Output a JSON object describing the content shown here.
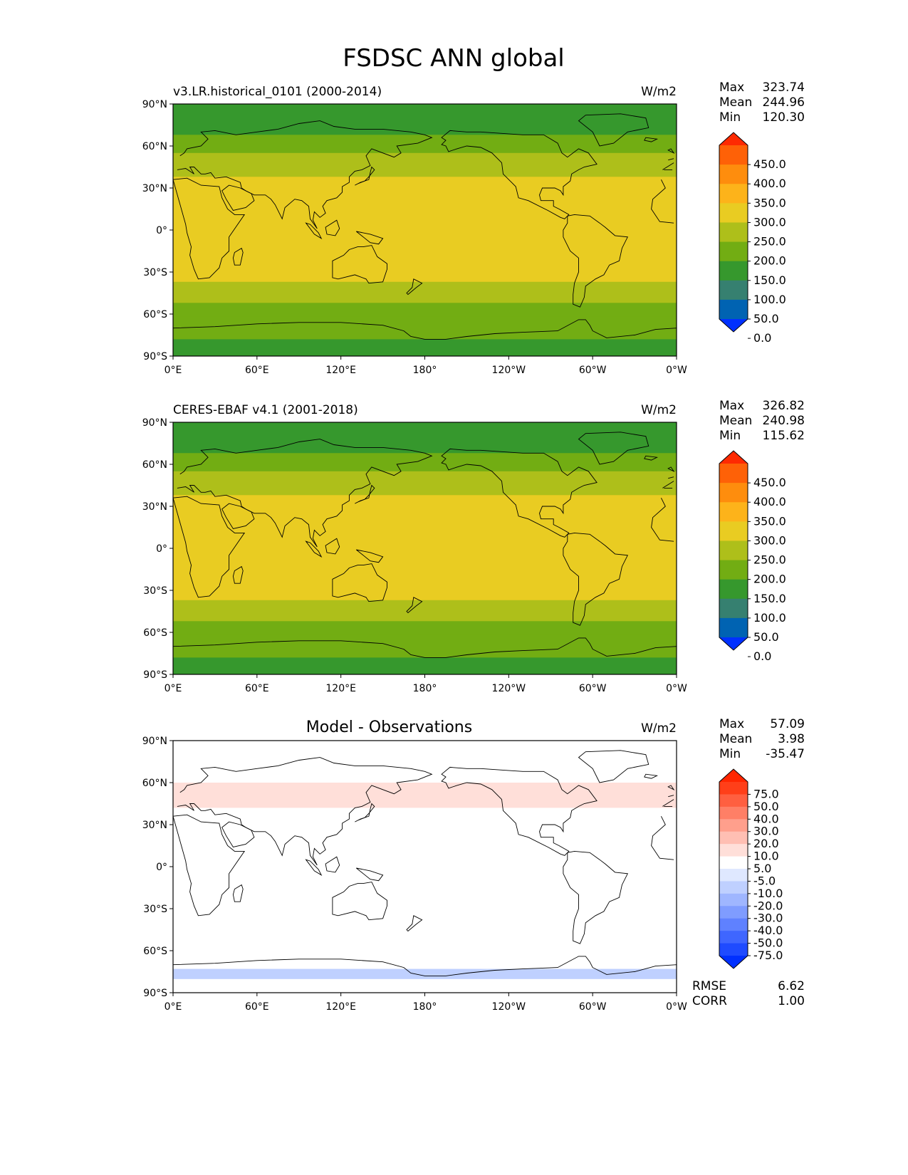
{
  "figure": {
    "title": "FSDSC ANN global"
  },
  "chart_data": [
    {
      "type": "heatmap",
      "title": "v3.LR.historical_0101 (2000-2014)",
      "units": "W/m2",
      "stats": {
        "Max": "323.74",
        "Mean": "244.96",
        "Min": "120.30"
      },
      "xticks": [
        "0°E",
        "60°E",
        "120°E",
        "180°",
        "120°W",
        "60°W",
        "0°W"
      ],
      "yticks": [
        "90°N",
        "60°N",
        "30°N",
        "0°",
        "30°S",
        "60°S",
        "90°S"
      ],
      "colorbar": {
        "levels": [
          "450.0",
          "400.0",
          "350.0",
          "300.0",
          "250.0",
          "200.0",
          "150.0",
          "100.0",
          "50.0",
          "0.0"
        ],
        "colors": [
          "#0030ff",
          "#0063b2",
          "#368070",
          "#36982d",
          "#72ad13",
          "#aebf1a",
          "#e9cc22",
          "#fdb31a",
          "#fe8d0d",
          "#fe6107",
          "#fe2a02"
        ]
      },
      "zonal_bands": [
        {
          "lat_from": 90,
          "lat_to": 68,
          "value": 125
        },
        {
          "lat_from": 68,
          "lat_to": 55,
          "value": 175
        },
        {
          "lat_from": 55,
          "lat_to": 44,
          "value": 215
        },
        {
          "lat_from": 44,
          "lat_to": 38,
          "value": 240
        },
        {
          "lat_from": 38,
          "lat_to": -33,
          "value": 280
        },
        {
          "lat_from": -33,
          "lat_to": -37,
          "value": 255
        },
        {
          "lat_from": -37,
          "lat_to": -52,
          "value": 230
        },
        {
          "lat_from": -52,
          "lat_to": -62,
          "value": 175
        },
        {
          "lat_from": -62,
          "lat_to": -78,
          "value": 150
        },
        {
          "lat_from": -78,
          "lat_to": -90,
          "value": 120
        }
      ]
    },
    {
      "type": "heatmap",
      "title": "CERES-EBAF v4.1 (2001-2018)",
      "units": "W/m2",
      "stats": {
        "Max": "326.82",
        "Mean": "240.98",
        "Min": "115.62"
      },
      "xticks": [
        "0°E",
        "60°E",
        "120°E",
        "180°",
        "120°W",
        "60°W",
        "0°W"
      ],
      "yticks": [
        "90°N",
        "60°N",
        "30°N",
        "0°",
        "30°S",
        "60°S",
        "90°S"
      ],
      "colorbar": {
        "levels": [
          "450.0",
          "400.0",
          "350.0",
          "300.0",
          "250.0",
          "200.0",
          "150.0",
          "100.0",
          "50.0",
          "0.0"
        ],
        "colors": [
          "#0030ff",
          "#0063b2",
          "#368070",
          "#36982d",
          "#72ad13",
          "#aebf1a",
          "#e9cc22",
          "#fdb31a",
          "#fe8d0d",
          "#fe6107",
          "#fe2a02"
        ]
      },
      "zonal_bands": [
        {
          "lat_from": 90,
          "lat_to": 68,
          "value": 125
        },
        {
          "lat_from": 68,
          "lat_to": 55,
          "value": 175
        },
        {
          "lat_from": 55,
          "lat_to": 44,
          "value": 215
        },
        {
          "lat_from": 44,
          "lat_to": 38,
          "value": 240
        },
        {
          "lat_from": 38,
          "lat_to": -33,
          "value": 275
        },
        {
          "lat_from": -33,
          "lat_to": -37,
          "value": 255
        },
        {
          "lat_from": -37,
          "lat_to": -52,
          "value": 230
        },
        {
          "lat_from": -52,
          "lat_to": -62,
          "value": 175
        },
        {
          "lat_from": -62,
          "lat_to": -78,
          "value": 150
        },
        {
          "lat_from": -78,
          "lat_to": -90,
          "value": 120
        }
      ]
    },
    {
      "type": "heatmap",
      "title": "Model - Observations",
      "units": "W/m2",
      "stats": {
        "Max": "57.09",
        "Mean": "3.98",
        "Min": "-35.47"
      },
      "rmse_label": "RMSE",
      "rmse": "6.62",
      "corr_label": "CORR",
      "corr": "1.00",
      "xticks": [
        "0°E",
        "60°E",
        "120°E",
        "180°",
        "120°W",
        "60°W",
        "0°W"
      ],
      "yticks": [
        "90°N",
        "60°N",
        "30°N",
        "0°",
        "30°S",
        "60°S",
        "90°S"
      ],
      "colorbar": {
        "levels": [
          "75.0",
          "50.0",
          "40.0",
          "30.0",
          "20.0",
          "10.0",
          "5.0",
          "-5.0",
          "-10.0",
          "-20.0",
          "-30.0",
          "-40.0",
          "-50.0",
          "-75.0"
        ],
        "colors": [
          "#0030ff",
          "#1f4bff",
          "#3f66ff",
          "#5f81ff",
          "#7f9cff",
          "#9fb6ff",
          "#bfd0ff",
          "#dfe8ff",
          "#ffffff",
          "#ffdfd9",
          "#ffbfb3",
          "#ff9f8c",
          "#ff7f66",
          "#ff5f40",
          "#ff3f19",
          "#ff2600"
        ]
      },
      "zonal_bands": [
        {
          "lat_from": 60,
          "lat_to": 42,
          "value": 12
        },
        {
          "lat_from": 42,
          "lat_to": 22,
          "value": 8
        },
        {
          "lat_from": 22,
          "lat_to": -20,
          "value": 7
        },
        {
          "lat_from": -73,
          "lat_to": -80,
          "value": -7
        }
      ]
    }
  ]
}
